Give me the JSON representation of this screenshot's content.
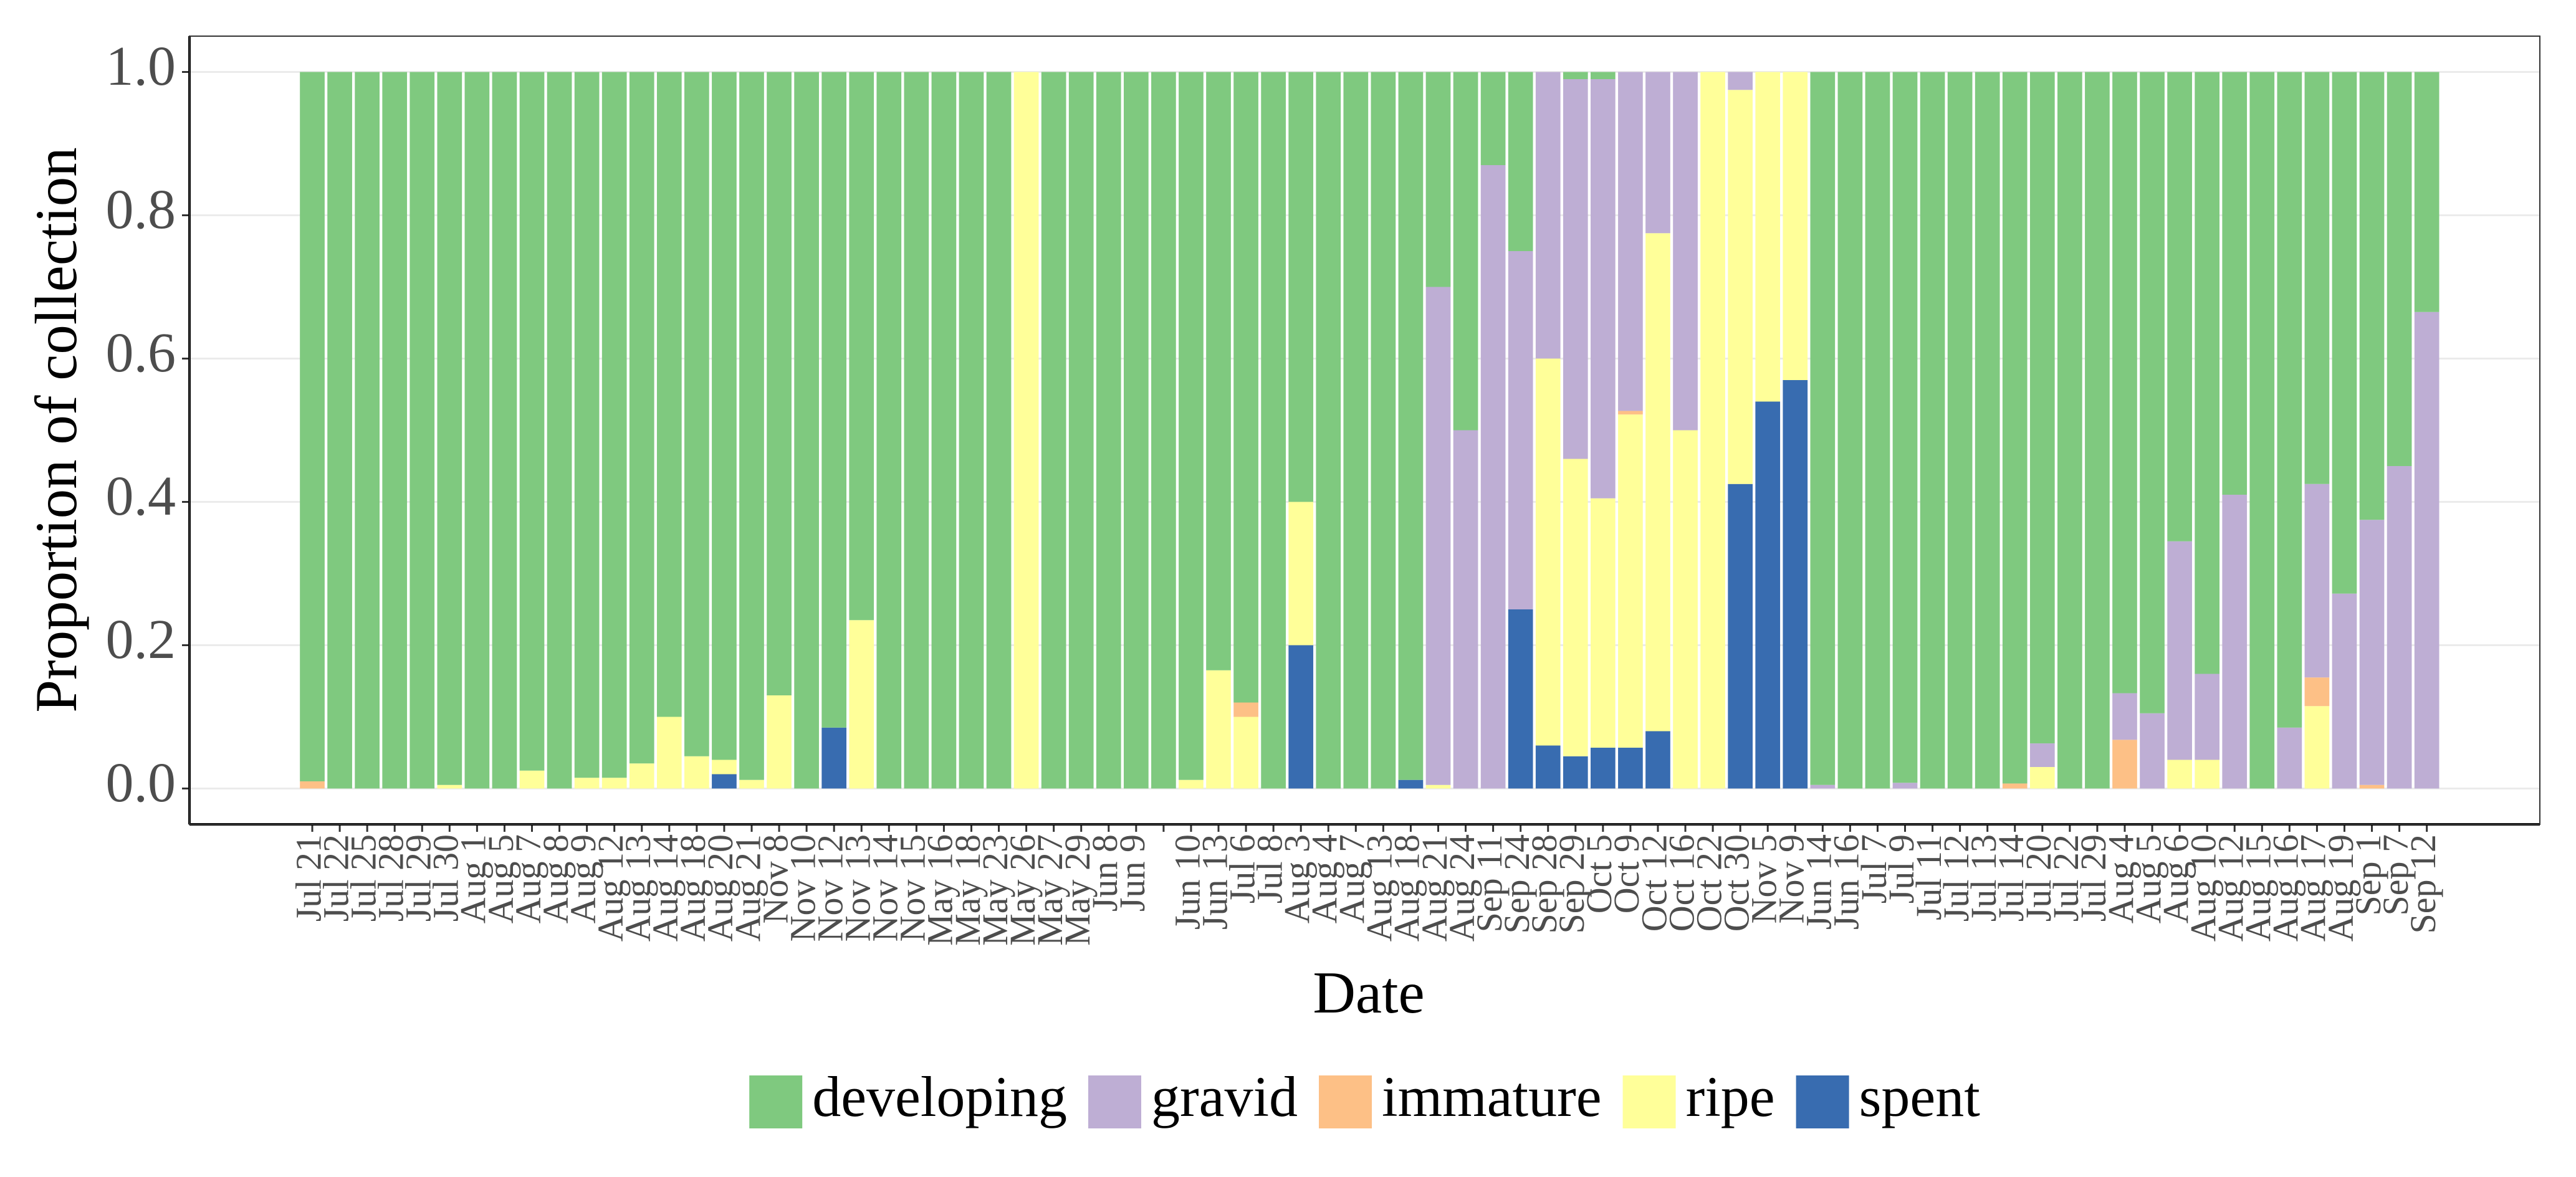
{
  "chart_data": {
    "type": "stacked_bar",
    "x_label": "Date",
    "y_label": "Proportion of collection",
    "categories": [
      "Jul 21",
      "Jul 22",
      "Jul 25",
      "Jul 28",
      "Jul 29",
      "Jul 30",
      "Aug 1",
      "Aug 5",
      "Aug 7",
      "Aug 8",
      "Aug 9",
      "Aug 12",
      "Aug 13",
      "Aug 14",
      "Aug 18",
      "Aug 20",
      "Aug 21",
      "Nov 8",
      "Nov 10",
      "Nov 12",
      "Nov 13",
      "Nov 14",
      "Nov 15",
      "May 16",
      "May 18",
      "May 23",
      "May 26",
      "May 27",
      "May 29",
      "Jun 8",
      "Jun 9",
      null,
      "Jun 10",
      "Jun 13",
      "Jul 6",
      "Jul 8",
      "Aug 3",
      "Aug 4",
      "Aug 7",
      "Aug 13",
      "Aug 18",
      "Aug 21",
      "Aug 24",
      "Sep 11",
      "Sep 24",
      "Sep 28",
      "Sep 29",
      "Oct 5",
      "Oct 9",
      "Oct 12",
      "Oct 16",
      "Oct 22",
      "Oct 30",
      "Nov 5",
      "Nov 9",
      "Jun 14",
      "Jun 16",
      "Jul 7",
      "Jul 9",
      "Jul 11",
      "Jul 12",
      "Jul 13",
      "Jul 14",
      "Jul 20",
      "Jul 22",
      "Jul 29",
      "Aug 4",
      "Aug 5",
      "Aug 6",
      "Aug 10",
      "Aug 12",
      "Aug 15",
      "Aug 16",
      "Aug 17",
      "Aug 19",
      "Sep 1",
      "Sep 7",
      "Sep 12"
    ],
    "series": [
      {
        "name": "developing",
        "color": "#7fc97f",
        "values": [
          0.99,
          1,
          1,
          1,
          1,
          0.995,
          1,
          1,
          0.975,
          1,
          0.985,
          0.985,
          0.965,
          0.9,
          0.955,
          0.96,
          0.988,
          0.87,
          1,
          0.915,
          0.765,
          1,
          1,
          1,
          1,
          1,
          0,
          1,
          1,
          1,
          1,
          1,
          0.988,
          0.835,
          0.88,
          1,
          0.6,
          1,
          1,
          1,
          0.988,
          0.3,
          0.5,
          0.13,
          0.25,
          0,
          0.01,
          0.01,
          0,
          0,
          0,
          0,
          0,
          0,
          0,
          0.995,
          1,
          1,
          0.992,
          1,
          1,
          1,
          0.993,
          0.937,
          1,
          1,
          0.867,
          0.895,
          0.655,
          0.84,
          0.59,
          1,
          0.915,
          0.575,
          0.728,
          0.625,
          0.55,
          0.335
        ]
      },
      {
        "name": "gravid",
        "color": "#beaed4",
        "values": [
          0,
          0,
          0,
          0,
          0,
          0,
          0,
          0,
          0,
          0,
          0,
          0,
          0,
          0,
          0,
          0,
          0,
          0,
          0,
          0,
          0,
          0,
          0,
          0,
          0,
          0,
          0,
          0,
          0,
          0,
          0,
          0,
          0,
          0,
          0,
          0,
          0,
          0,
          0,
          0,
          0,
          0.695,
          0.5,
          0.87,
          0.5,
          0.4,
          0.53,
          0.585,
          0.473,
          0.225,
          0.5,
          0,
          0.025,
          0,
          0,
          0.005,
          0,
          0,
          0.008,
          0,
          0,
          0,
          0,
          0.033,
          0,
          0,
          0.065,
          0.105,
          0.305,
          0.12,
          0.41,
          0,
          0.085,
          0.27,
          0.272,
          0.37,
          0.45,
          0.665
        ]
      },
      {
        "name": "immature",
        "color": "#fdc086",
        "values": [
          0.01,
          0,
          0,
          0,
          0,
          0,
          0,
          0,
          0,
          0,
          0,
          0,
          0,
          0,
          0,
          0,
          0,
          0,
          0,
          0,
          0,
          0,
          0,
          0,
          0,
          0,
          0,
          0,
          0,
          0,
          0,
          0,
          0,
          0,
          0.02,
          0,
          0,
          0,
          0,
          0,
          0,
          0,
          0,
          0,
          0,
          0,
          0,
          0,
          0.005,
          0,
          0,
          0,
          0,
          0,
          0,
          0,
          0,
          0,
          0,
          0,
          0,
          0,
          0.007,
          0,
          0,
          0,
          0.068,
          0,
          0,
          0,
          0,
          0,
          0,
          0.04,
          0,
          0.005,
          0,
          0
        ]
      },
      {
        "name": "ripe",
        "color": "#ffff99",
        "values": [
          0,
          0,
          0,
          0,
          0,
          0.005,
          0,
          0,
          0.025,
          0,
          0.015,
          0.015,
          0.035,
          0.1,
          0.045,
          0.02,
          0.012,
          0.13,
          0,
          0,
          0.235,
          0,
          0,
          0,
          0,
          0,
          1,
          0,
          0,
          0,
          0,
          0,
          0.012,
          0.165,
          0.1,
          0,
          0.2,
          0,
          0,
          0,
          0,
          0.005,
          0,
          0,
          0,
          0.54,
          0.415,
          0.348,
          0.465,
          0.695,
          0.5,
          1,
          0.55,
          0.46,
          0.43,
          0,
          0,
          0,
          0,
          0,
          0,
          0,
          0,
          0.03,
          0,
          0,
          0,
          0,
          0.04,
          0.04,
          0,
          0,
          0,
          0.115,
          0,
          0,
          0,
          0
        ]
      },
      {
        "name": "spent",
        "color": "#386cb0",
        "values": [
          0,
          0,
          0,
          0,
          0,
          0,
          0,
          0,
          0,
          0,
          0,
          0,
          0,
          0,
          0,
          0.02,
          0,
          0,
          0,
          0.085,
          0,
          0,
          0,
          0,
          0,
          0,
          0,
          0,
          0,
          0,
          0,
          0,
          0,
          0,
          0,
          0,
          0.2,
          0,
          0,
          0,
          0.012,
          0,
          0,
          0,
          0.25,
          0.06,
          0.045,
          0.057,
          0.057,
          0.08,
          0,
          0,
          0.425,
          0.54,
          0.57,
          0,
          0,
          0,
          0,
          0,
          0,
          0,
          0,
          0,
          0,
          0,
          0,
          0,
          0,
          0,
          0,
          0,
          0,
          0,
          0,
          0,
          0,
          0
        ]
      }
    ],
    "ylim": [
      -0.05,
      1.05
    ],
    "yticks": [
      {
        "value": 0,
        "label": "0.0"
      },
      {
        "value": 0.2,
        "label": "0.2"
      },
      {
        "value": 0.4,
        "label": "0.4"
      },
      {
        "value": 0.6,
        "label": "0.6"
      },
      {
        "value": 0.8,
        "label": "0.8"
      },
      {
        "value": 1,
        "label": "1.0"
      }
    ],
    "grid": true,
    "legend": "bottom"
  }
}
